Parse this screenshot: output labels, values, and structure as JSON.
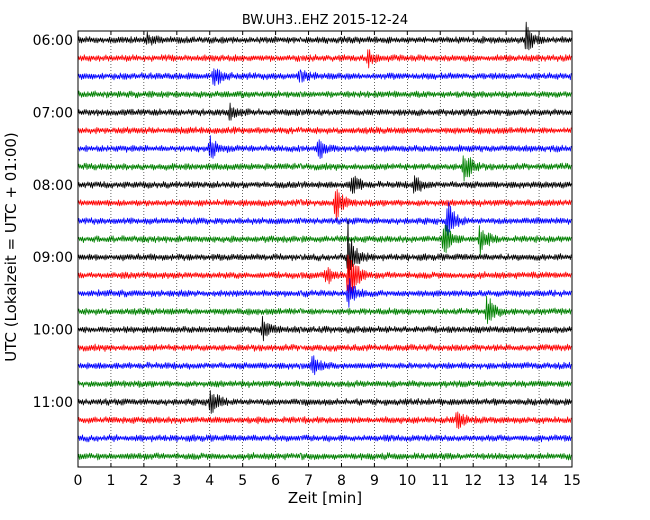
{
  "chart_data": {
    "type": "line",
    "title": "BW.UH3..EHZ 2015-12-24",
    "xlabel": "Zeit  [min]",
    "ylabel": "UTC (Lokalzeit = UTC + 01:00)",
    "xlim": [
      0,
      15
    ],
    "x_ticks": [
      0,
      1,
      2,
      3,
      4,
      5,
      6,
      7,
      8,
      9,
      10,
      11,
      12,
      13,
      14,
      15
    ],
    "y_tick_labels": [
      "06:00",
      "07:00",
      "08:00",
      "09:00",
      "10:00",
      "11:00"
    ],
    "y_tick_trace_index": [
      0,
      4,
      8,
      12,
      16,
      20
    ],
    "trace_minutes": 15,
    "colors": [
      "#000000",
      "#ff0000",
      "#0000ff",
      "#008000"
    ],
    "grid": "vertical dotted",
    "events": [
      {
        "trace": 0,
        "minute": 13.6,
        "amp": 1.2
      },
      {
        "trace": 0,
        "minute": 2.1,
        "amp": 0.45
      },
      {
        "trace": 1,
        "minute": 8.8,
        "amp": 0.6
      },
      {
        "trace": 2,
        "minute": 4.1,
        "amp": 0.9
      },
      {
        "trace": 2,
        "minute": 6.7,
        "amp": 0.5
      },
      {
        "trace": 4,
        "minute": 4.6,
        "amp": 0.5
      },
      {
        "trace": 6,
        "minute": 4.0,
        "amp": 1.0
      },
      {
        "trace": 6,
        "minute": 7.3,
        "amp": 1.0
      },
      {
        "trace": 7,
        "minute": 11.7,
        "amp": 1.5
      },
      {
        "trace": 8,
        "minute": 8.3,
        "amp": 0.9
      },
      {
        "trace": 8,
        "minute": 10.2,
        "amp": 0.8
      },
      {
        "trace": 9,
        "minute": 7.8,
        "amp": 1.4
      },
      {
        "trace": 10,
        "minute": 11.2,
        "amp": 1.6
      },
      {
        "trace": 11,
        "minute": 11.1,
        "amp": 1.4
      },
      {
        "trace": 11,
        "minute": 12.2,
        "amp": 1.1
      },
      {
        "trace": 12,
        "minute": 8.2,
        "amp": 2.6
      },
      {
        "trace": 13,
        "minute": 7.5,
        "amp": 0.7
      },
      {
        "trace": 13,
        "minute": 8.2,
        "amp": 2.8
      },
      {
        "trace": 14,
        "minute": 8.2,
        "amp": 1.2
      },
      {
        "trace": 15,
        "minute": 12.4,
        "amp": 1.3
      },
      {
        "trace": 16,
        "minute": 5.6,
        "amp": 0.9
      },
      {
        "trace": 18,
        "minute": 7.1,
        "amp": 0.8
      },
      {
        "trace": 20,
        "minute": 4.0,
        "amp": 1.2
      },
      {
        "trace": 21,
        "minute": 11.5,
        "amp": 0.8
      }
    ]
  }
}
